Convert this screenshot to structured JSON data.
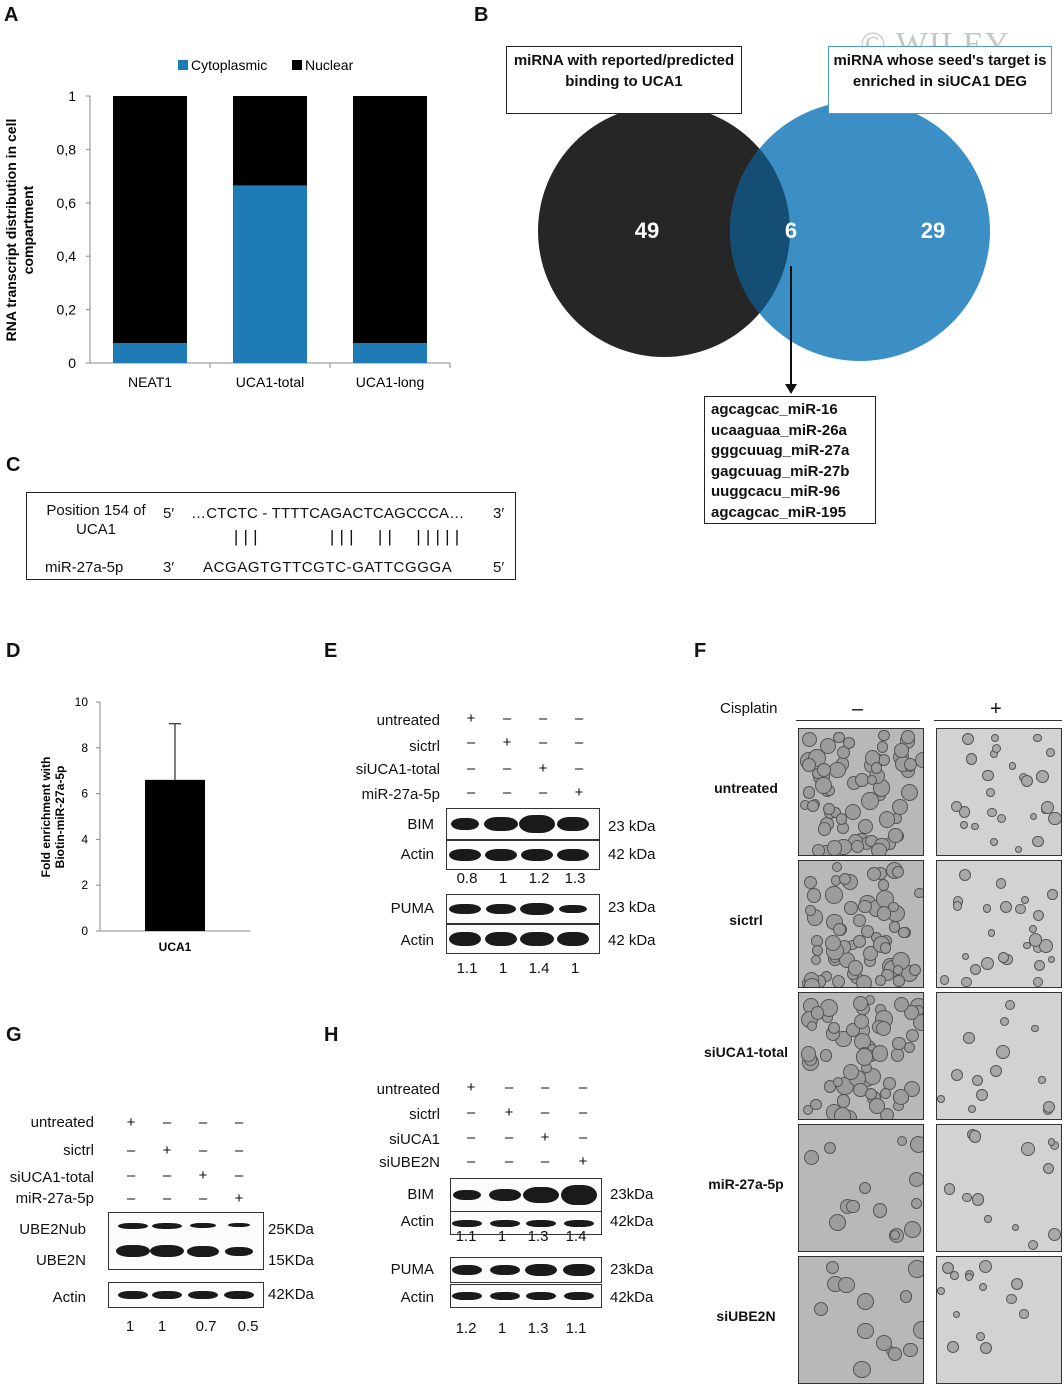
{
  "panels": {
    "A": "A",
    "B": "B",
    "C": "C",
    "D": "D",
    "E": "E",
    "F": "F",
    "G": "G",
    "H": "H"
  },
  "watermark": "© WILEY",
  "chart_data": [
    {
      "panel": "A",
      "type": "bar",
      "stacked": true,
      "categories": [
        "NEAT1",
        "UCA1-total",
        "UCA1-long"
      ],
      "series": [
        {
          "name": "Cytoplasmic",
          "color": "#1f7bb6",
          "values": [
            0.075,
            0.665,
            0.075
          ]
        },
        {
          "name": "Nuclear",
          "color": "#000000",
          "values": [
            0.925,
            0.335,
            0.925
          ]
        }
      ],
      "ylabel": "RNA transcript distribution in cell compartment",
      "yticks": [
        "0",
        "0,2",
        "0,4",
        "0,6",
        "0,8",
        "1"
      ],
      "ylim": [
        0,
        1
      ],
      "legend": "top"
    },
    {
      "panel": "D",
      "type": "bar",
      "categories": [
        "UCA1"
      ],
      "values": [
        6.6
      ],
      "error": [
        2.45
      ],
      "ylabel": "Fold enrichment with Biotin-miR-27a-5p",
      "yticks": [
        "0",
        "2",
        "4",
        "6",
        "8",
        "10"
      ],
      "ylim": [
        0,
        10
      ]
    }
  ],
  "venn": {
    "left_label": "miRNA with reported/predicted binding to UCA1",
    "right_label": "miRNA whose seed's target is enriched in siUCA1 DEG",
    "left_only": "49",
    "overlap": "6",
    "right_only": "29",
    "left_color": "#262626",
    "right_color": "#3b8fc4",
    "overlap_color": "#154e75",
    "list": [
      "agcagcac_miR-16",
      "ucaaguaa_miR-26a",
      "gggcuuag_miR-27a",
      "gagcuuag_miR-27b",
      "uuggcacu_miR-96",
      "agcagcac_miR-195"
    ]
  },
  "alignment": {
    "row1_label": "Position 154 of UCA1",
    "row1_5": "5′",
    "row1_seq": "…CTCTC - TTTTCAGACTCAGCCCA…",
    "row1_3": "3′",
    "pairs": "|||       |||  ||  |||||",
    "row2_label": "miR-27a-5p",
    "row2_3": "3′",
    "row2_seq": "ACGAGTGTTCGTC-GATTCGGGA",
    "row2_5": "5′"
  },
  "blotE": {
    "conditions": [
      "untreated",
      "sictrl",
      "siUCA1-total",
      "miR-27a-5p"
    ],
    "signs": [
      [
        "+",
        "–",
        "–",
        "–"
      ],
      [
        "–",
        "+",
        "–",
        "–"
      ],
      [
        "–",
        "–",
        "+",
        "–"
      ],
      [
        "–",
        "–",
        "–",
        "+"
      ]
    ],
    "rows": [
      {
        "label": "BIM",
        "size": "23 kDa"
      },
      {
        "label": "Actin",
        "size": "42 kDa"
      },
      {
        "label": "PUMA",
        "size": "23 kDa"
      },
      {
        "label": "Actin",
        "size": "42 kDa"
      }
    ],
    "quant1": [
      "0.8",
      "1",
      "1.2",
      "1.3"
    ],
    "quant2": [
      "1.1",
      "1",
      "1.4",
      "1"
    ]
  },
  "blotG": {
    "conditions": [
      "untreated",
      "sictrl",
      "siUCA1-total",
      "miR-27a-5p"
    ],
    "signs": [
      [
        "+",
        "–",
        "–",
        "–"
      ],
      [
        "–",
        "+",
        "–",
        "–"
      ],
      [
        "–",
        "–",
        "+",
        "–"
      ],
      [
        "–",
        "–",
        "–",
        "+"
      ]
    ],
    "rows": [
      {
        "label": "UBE2Nub",
        "size": "25KDa"
      },
      {
        "label": "UBE2N",
        "size": "15KDa"
      },
      {
        "label": "Actin",
        "size": "42KDa"
      }
    ],
    "quant": [
      "1",
      "1",
      "0.7",
      "0.5"
    ]
  },
  "blotH": {
    "conditions": [
      "untreated",
      "sictrl",
      "siUCA1",
      "siUBE2N"
    ],
    "signs": [
      [
        "+",
        "–",
        "–",
        "–"
      ],
      [
        "–",
        "+",
        "–",
        "–"
      ],
      [
        "–",
        "–",
        "+",
        "–"
      ],
      [
        "–",
        "–",
        "–",
        "+"
      ]
    ],
    "rows": [
      {
        "label": "BIM",
        "size": "23kDa"
      },
      {
        "label": "Actin",
        "size": "42kDa"
      },
      {
        "label": "PUMA",
        "size": "23kDa"
      },
      {
        "label": "Actin",
        "size": "42kDa"
      }
    ],
    "quant1": [
      "1.1",
      "1",
      "1.3",
      "1.4"
    ],
    "quant2": [
      "1.2",
      "1",
      "1.3",
      "1.1"
    ]
  },
  "micro": {
    "cisplatin": "Cisplatin",
    "minus": "–",
    "plus": "+",
    "rows": [
      "untreated",
      "sictrl",
      "siUCA1-total",
      "miR-27a-5p",
      "siUBE2N"
    ]
  }
}
